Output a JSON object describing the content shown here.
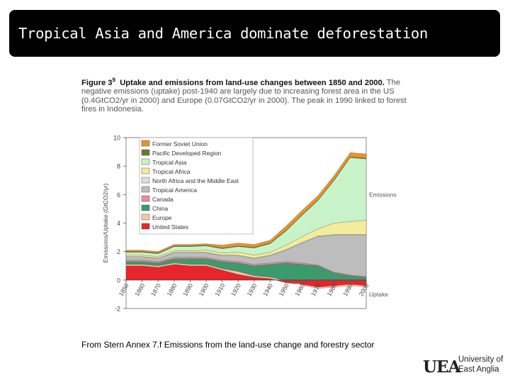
{
  "slide": {
    "title": "Tropical Asia and America dominate deforestation",
    "source": "From Stern Annex 7.f Emissions from the land-use change and forestry sector"
  },
  "figure": {
    "label": "Figure 3",
    "label_sup": "9",
    "heading": "Uptake and emissions from land-use changes between 1850 and 2000.",
    "body": "The negative emissions (uptake) post-1940 are largely due to increasing forest area in the US (0.4GtCO2/yr in 2000) and Europe (0.07GtCO2/yr in 2000). The peak in 1990 linked to forest fires in Indonesia."
  },
  "logo": {
    "mark": "UEA",
    "line1": "University of",
    "line2": "East Anglia"
  },
  "chart_data": {
    "type": "area",
    "ylabel": "Emissions/Uptake (GtCO2/yr)",
    "ylim": [
      -2,
      10
    ],
    "yticks": [
      -2,
      0,
      2,
      4,
      6,
      8,
      10
    ],
    "xlim": [
      1850,
      2000
    ],
    "xticks": [
      1850,
      1860,
      1870,
      1880,
      1890,
      1900,
      1910,
      1920,
      1930,
      1940,
      1950,
      1960,
      1970,
      1980,
      1990,
      2000
    ],
    "annotations": [
      "Emissions",
      "Uptake"
    ],
    "legend_position": "top-left",
    "x": [
      1850,
      1860,
      1870,
      1880,
      1890,
      1900,
      1910,
      1920,
      1930,
      1940,
      1950,
      1960,
      1970,
      1980,
      1990,
      2000
    ],
    "series": [
      {
        "name": "United States",
        "color": "#e8242c",
        "values": [
          1.0,
          1.0,
          0.9,
          1.1,
          1.0,
          1.0,
          0.7,
          0.4,
          0.2,
          0.1,
          -0.2,
          -0.3,
          -0.5,
          -0.4,
          -0.3,
          -0.4
        ]
      },
      {
        "name": "Europe",
        "color": "#f7c6a6",
        "values": [
          0.1,
          0.1,
          0.1,
          0.1,
          0.1,
          0.1,
          0.1,
          0.2,
          0.1,
          0.1,
          0.0,
          -0.05,
          -0.1,
          -0.1,
          -0.1,
          -0.07
        ]
      },
      {
        "name": "China",
        "color": "#3c9a6c",
        "values": [
          0.2,
          0.2,
          0.2,
          0.3,
          0.4,
          0.4,
          0.5,
          0.6,
          0.7,
          0.9,
          1.2,
          1.1,
          1.0,
          0.5,
          0.3,
          0.2
        ]
      },
      {
        "name": "Canada",
        "color": "#e98b9e",
        "values": [
          0.1,
          0.1,
          0.1,
          0.1,
          0.1,
          0.1,
          0.1,
          0.1,
          0.1,
          0.1,
          0.1,
          0.1,
          0.05,
          0.05,
          0.05,
          0.05
        ]
      },
      {
        "name": "Tropical America",
        "color": "#bdbdbd",
        "values": [
          0.2,
          0.2,
          0.2,
          0.3,
          0.3,
          0.3,
          0.3,
          0.4,
          0.4,
          0.5,
          0.8,
          1.4,
          2.0,
          2.6,
          2.8,
          2.9
        ]
      },
      {
        "name": "North Africa and the Middle East",
        "color": "#d8dfe6",
        "values": [
          0.05,
          0.05,
          0.05,
          0.05,
          0.05,
          0.05,
          0.05,
          0.05,
          0.05,
          0.05,
          0.05,
          0.05,
          0.05,
          0.05,
          0.05,
          0.05
        ]
      },
      {
        "name": "Tropical Africa",
        "color": "#f3ec9a",
        "values": [
          0.1,
          0.1,
          0.1,
          0.1,
          0.1,
          0.15,
          0.15,
          0.2,
          0.2,
          0.2,
          0.3,
          0.4,
          0.5,
          0.8,
          0.9,
          1.0
        ]
      },
      {
        "name": "Tropical Asia",
        "color": "#c8f3c8",
        "values": [
          0.2,
          0.2,
          0.2,
          0.3,
          0.3,
          0.3,
          0.3,
          0.4,
          0.5,
          0.6,
          1.0,
          1.5,
          2.0,
          3.0,
          4.5,
          4.3
        ]
      },
      {
        "name": "Pacific Developed Region",
        "color": "#6b7a2a",
        "values": [
          0.05,
          0.05,
          0.05,
          0.05,
          0.05,
          0.05,
          0.05,
          0.05,
          0.05,
          0.05,
          0.05,
          0.05,
          0.05,
          0.05,
          0.05,
          0.05
        ]
      },
      {
        "name": "Former Soviet Union",
        "color": "#e8932a",
        "values": [
          0.1,
          0.1,
          0.1,
          0.1,
          0.1,
          0.1,
          0.2,
          0.2,
          0.2,
          0.2,
          0.3,
          0.3,
          0.3,
          0.3,
          0.3,
          0.3
        ]
      }
    ]
  }
}
